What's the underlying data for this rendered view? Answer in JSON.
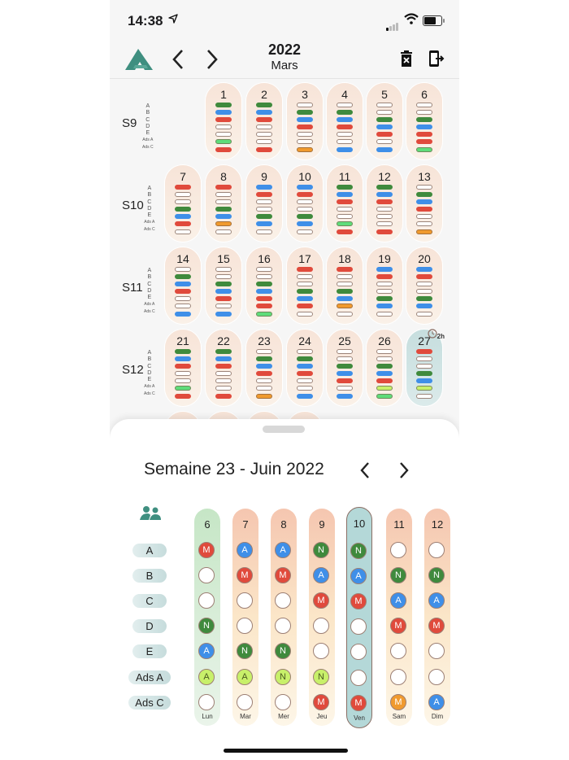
{
  "status_bar": {
    "time": "14:38",
    "location_icon": "location-arrow-icon",
    "signal": "signal-icon",
    "wifi": "wifi-icon",
    "battery": "battery-icon"
  },
  "header": {
    "logo": "app-logo",
    "year": "2022",
    "month": "Mars",
    "prev_icon": "chevron-left-icon",
    "next_icon": "chevron-right-icon",
    "delete_icon": "trash-x-icon",
    "exit_icon": "logout-icon"
  },
  "colors": {
    "green": "#3f8a3d",
    "blue": "#3f8fe8",
    "red": "#e04a3c",
    "orange": "#f09a2e",
    "light_green": "#5fdc7a",
    "lime": "#c8f06a",
    "teal": "#3f8f80"
  },
  "row_labels": [
    "A",
    "B",
    "C",
    "D",
    "E",
    "Ads A",
    "Ads C"
  ],
  "month_grid": {
    "weeks": [
      {
        "label": "S9",
        "days": [
          {
            "num": "1",
            "col": 1,
            "slots": [
              "g",
              "b",
              "r",
              "w",
              "w",
              "lg",
              "r"
            ]
          },
          {
            "num": "2",
            "col": 2,
            "slots": [
              "g",
              "b",
              "r",
              "w",
              "w",
              "w",
              "r"
            ]
          },
          {
            "num": "3",
            "col": 3,
            "slots": [
              "w",
              "g",
              "b",
              "r",
              "w",
              "w",
              "o"
            ]
          },
          {
            "num": "4",
            "col": 4,
            "slots": [
              "w",
              "g",
              "b",
              "r",
              "w",
              "w",
              "b"
            ]
          },
          {
            "num": "5",
            "col": 5,
            "slots": [
              "w",
              "w",
              "g",
              "b",
              "r",
              "w",
              "b"
            ]
          },
          {
            "num": "6",
            "col": 6,
            "slots": [
              "w",
              "w",
              "g",
              "b",
              "r",
              "r",
              "lg"
            ]
          }
        ]
      },
      {
        "label": "S10",
        "days": [
          {
            "num": "7",
            "col": 0,
            "slots": [
              "r",
              "w",
              "w",
              "g",
              "b",
              "r",
              "w"
            ]
          },
          {
            "num": "8",
            "col": 1,
            "slots": [
              "r",
              "w",
              "w",
              "g",
              "b",
              "o",
              "w"
            ]
          },
          {
            "num": "9",
            "col": 2,
            "slots": [
              "b",
              "r",
              "w",
              "w",
              "g",
              "b",
              "w"
            ]
          },
          {
            "num": "10",
            "col": 3,
            "slots": [
              "b",
              "r",
              "w",
              "w",
              "g",
              "b",
              "w"
            ]
          },
          {
            "num": "11",
            "col": 4,
            "slots": [
              "g",
              "b",
              "r",
              "w",
              "w",
              "lg",
              "r"
            ]
          },
          {
            "num": "12",
            "col": 5,
            "slots": [
              "g",
              "b",
              "r",
              "w",
              "w",
              "w",
              "r"
            ]
          },
          {
            "num": "13",
            "col": 6,
            "slots": [
              "w",
              "g",
              "b",
              "r",
              "w",
              "w",
              "o"
            ]
          }
        ]
      },
      {
        "label": "S11",
        "days": [
          {
            "num": "14",
            "col": 0,
            "slots": [
              "w",
              "g",
              "b",
              "r",
              "w",
              "w",
              "b"
            ]
          },
          {
            "num": "15",
            "col": 1,
            "slots": [
              "w",
              "w",
              "g",
              "b",
              "r",
              "w",
              "b"
            ]
          },
          {
            "num": "16",
            "col": 2,
            "slots": [
              "w",
              "w",
              "g",
              "b",
              "r",
              "r",
              "lg"
            ]
          },
          {
            "num": "17",
            "col": 3,
            "slots": [
              "r",
              "w",
              "w",
              "g",
              "b",
              "r",
              "w"
            ]
          },
          {
            "num": "18",
            "col": 4,
            "slots": [
              "r",
              "w",
              "w",
              "g",
              "b",
              "o",
              "w"
            ]
          },
          {
            "num": "19",
            "col": 5,
            "slots": [
              "b",
              "r",
              "w",
              "w",
              "g",
              "b",
              "w"
            ]
          },
          {
            "num": "20",
            "col": 6,
            "slots": [
              "b",
              "r",
              "w",
              "w",
              "g",
              "b",
              "w"
            ]
          }
        ]
      },
      {
        "label": "S12",
        "days": [
          {
            "num": "21",
            "col": 0,
            "slots": [
              "g",
              "b",
              "r",
              "w",
              "w",
              "lg",
              "r"
            ]
          },
          {
            "num": "22",
            "col": 1,
            "slots": [
              "g",
              "b",
              "r",
              "w",
              "w",
              "w",
              "r"
            ]
          },
          {
            "num": "23",
            "col": 2,
            "slots": [
              "w",
              "g",
              "b",
              "r",
              "w",
              "w",
              "o"
            ]
          },
          {
            "num": "24",
            "col": 3,
            "slots": [
              "w",
              "g",
              "b",
              "r",
              "w",
              "w",
              "b"
            ]
          },
          {
            "num": "25",
            "col": 4,
            "slots": [
              "w",
              "w",
              "g",
              "b",
              "r",
              "w",
              "b"
            ]
          },
          {
            "num": "26",
            "col": 5,
            "slots": [
              "w",
              "w",
              "g",
              "b",
              "r",
              "y",
              "lg"
            ]
          },
          {
            "num": "27",
            "col": 6,
            "today": true,
            "badge": "2h",
            "slots": [
              "r",
              "w",
              "w",
              "g",
              "b",
              "y",
              "w"
            ]
          }
        ]
      }
    ]
  },
  "week_sheet": {
    "title": "Semaine 23 - Juin 2022",
    "prev_icon": "chevron-left-icon",
    "next_icon": "chevron-right-icon",
    "people_icon": "people-icon",
    "days": [
      {
        "num": "6",
        "name": "Lun",
        "style": "lun",
        "cells": [
          "M",
          "",
          "",
          "N",
          "A",
          "Ay",
          ""
        ]
      },
      {
        "num": "7",
        "name": "Mar",
        "style": "norm",
        "cells": [
          "A",
          "M",
          "",
          "",
          "N",
          "Ay",
          ""
        ]
      },
      {
        "num": "8",
        "name": "Mer",
        "style": "norm",
        "cells": [
          "A",
          "M",
          "",
          "",
          "N",
          "Ny",
          ""
        ]
      },
      {
        "num": "9",
        "name": "Jeu",
        "style": "norm",
        "cells": [
          "N",
          "A",
          "M",
          "",
          "",
          "Ny",
          "M"
        ]
      },
      {
        "num": "10",
        "name": "Ven",
        "style": "sel",
        "cells": [
          "N",
          "A",
          "M",
          "",
          "",
          "",
          "M"
        ]
      },
      {
        "num": "11",
        "name": "Sam",
        "style": "norm",
        "cells": [
          "",
          "N",
          "A",
          "M",
          "",
          "",
          "Mo"
        ]
      },
      {
        "num": "12",
        "name": "Dim",
        "style": "norm",
        "cells": [
          "",
          "N",
          "A",
          "M",
          "",
          "",
          "A"
        ]
      }
    ]
  }
}
